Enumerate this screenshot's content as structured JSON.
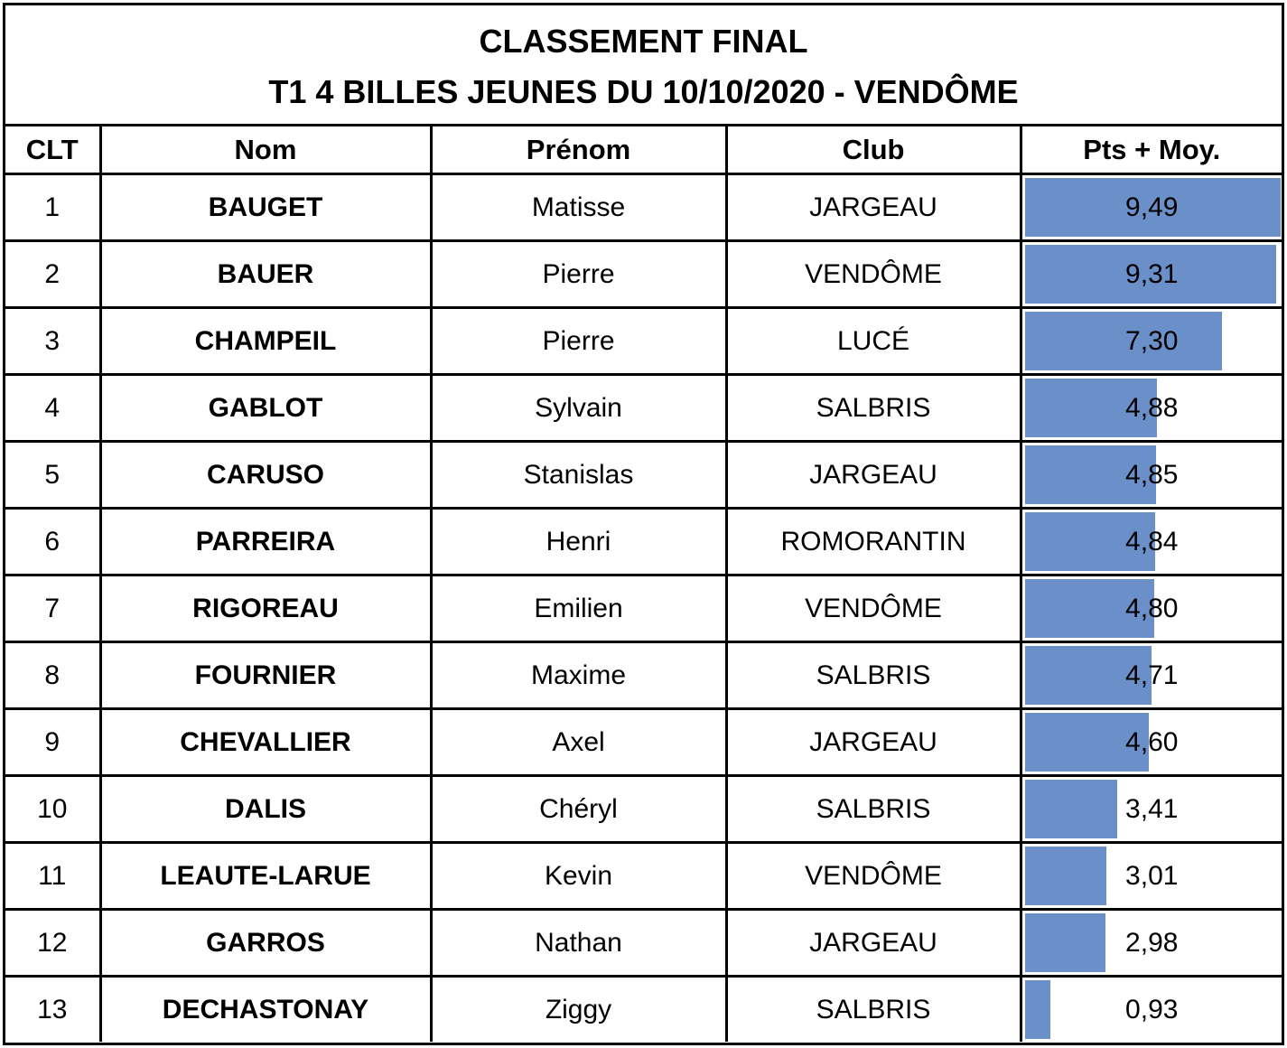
{
  "title": {
    "line1": "CLASSEMENT FINAL",
    "line2": "T1 4 BILLES JEUNES DU 10/10/2020 - VENDÔME"
  },
  "headers": [
    "CLT",
    "Nom",
    "Prénom",
    "Club",
    "Pts + Moy."
  ],
  "bar_color": "#6a8fc9",
  "bar_max_value": 9.49,
  "rows": [
    {
      "clt": "1",
      "nom": "BAUGET",
      "prenom": "Matisse",
      "club": "JARGEAU",
      "score": "9,49",
      "value": 9.49
    },
    {
      "clt": "2",
      "nom": "BAUER",
      "prenom": "Pierre",
      "club": "VENDÔME",
      "score": "9,31",
      "value": 9.31
    },
    {
      "clt": "3",
      "nom": "CHAMPEIL",
      "prenom": "Pierre",
      "club": "LUCÉ",
      "score": "7,30",
      "value": 7.3
    },
    {
      "clt": "4",
      "nom": "GABLOT",
      "prenom": "Sylvain",
      "club": "SALBRIS",
      "score": "4,88",
      "value": 4.88
    },
    {
      "clt": "5",
      "nom": "CARUSO",
      "prenom": "Stanislas",
      "club": "JARGEAU",
      "score": "4,85",
      "value": 4.85
    },
    {
      "clt": "6",
      "nom": "PARREIRA",
      "prenom": "Henri",
      "club": "ROMORANTIN",
      "score": "4,84",
      "value": 4.84
    },
    {
      "clt": "7",
      "nom": "RIGOREAU",
      "prenom": "Emilien",
      "club": "VENDÔME",
      "score": "4,80",
      "value": 4.8
    },
    {
      "clt": "8",
      "nom": "FOURNIER",
      "prenom": "Maxime",
      "club": "SALBRIS",
      "score": "4,71",
      "value": 4.71
    },
    {
      "clt": "9",
      "nom": "CHEVALLIER",
      "prenom": "Axel",
      "club": "JARGEAU",
      "score": "4,60",
      "value": 4.6
    },
    {
      "clt": "10",
      "nom": "DALIS",
      "prenom": "Chéryl",
      "club": "SALBRIS",
      "score": "3,41",
      "value": 3.41
    },
    {
      "clt": "11",
      "nom": "LEAUTE-LARUE",
      "prenom": "Kevin",
      "club": "VENDÔME",
      "score": "3,01",
      "value": 3.01
    },
    {
      "clt": "12",
      "nom": "GARROS",
      "prenom": "Nathan",
      "club": "JARGEAU",
      "score": "2,98",
      "value": 2.98
    },
    {
      "clt": "13",
      "nom": "DECHASTONAY",
      "prenom": "Ziggy",
      "club": "SALBRIS",
      "score": "0,93",
      "value": 0.93
    }
  ]
}
